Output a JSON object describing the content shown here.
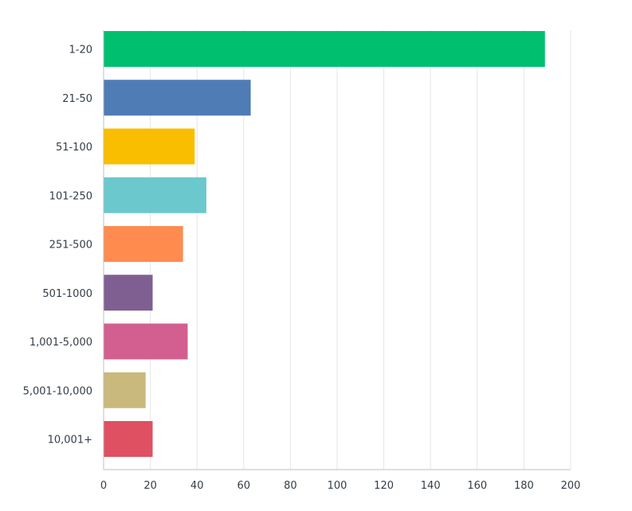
{
  "chart_data": {
    "type": "bar",
    "orientation": "horizontal",
    "title": "",
    "xlabel": "",
    "ylabel": "",
    "categories": [
      "1-20",
      "21-50",
      "51-100",
      "101-250",
      "251-500",
      "501-1000",
      "1,001-5,000",
      "5,001-10,000",
      "10,001+"
    ],
    "values": [
      189,
      63,
      39,
      44,
      34,
      21,
      36,
      18,
      21
    ],
    "xlim": [
      0,
      200
    ],
    "xticks": [
      "0",
      "20",
      "40",
      "60",
      "80",
      "100",
      "120",
      "140",
      "160",
      "180",
      "200"
    ],
    "colors": [
      "#00bf6f",
      "#507cb6",
      "#f9be00",
      "#6bc8cd",
      "#ff8b4f",
      "#7f5f92",
      "#d25f90",
      "#c9b97c",
      "#df5063"
    ],
    "grid": true,
    "legend": "none"
  }
}
